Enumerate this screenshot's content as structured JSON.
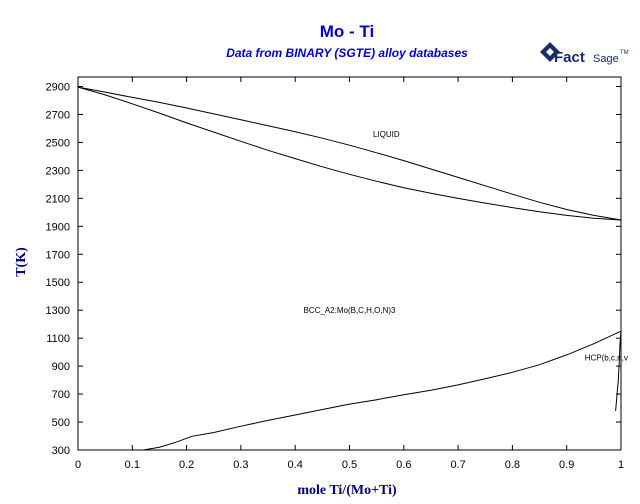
{
  "chart_data": {
    "type": "line",
    "title": "Mo - Ti",
    "subtitle": "Data from BINARY (SGTE) alloy databases",
    "xlabel": "mole Ti/(Mo+Ti)",
    "ylabel": "T(K)",
    "xlim": [
      0,
      1
    ],
    "ylim": [
      300,
      3000
    ],
    "xticks": [
      "0",
      "0.1",
      "0.2",
      "0.3",
      "0.4",
      "0.5",
      "0.6",
      "0.7",
      "0.8",
      "0.9",
      "1"
    ],
    "yticks": [
      "300",
      "500",
      "700",
      "900",
      "1100",
      "1300",
      "1500",
      "1700",
      "1900",
      "2100",
      "2300",
      "2500",
      "2700",
      "2900"
    ],
    "grid": false,
    "logo": {
      "main": "Fact",
      "sage": "Sage",
      "tm": "TM"
    },
    "annotations": [
      {
        "text": "LIQUID",
        "x": 0.58,
        "y": 2540
      },
      {
        "text": "BCC_A2:Mo(B,C,H,O,N)3",
        "x": 0.5,
        "y": 1280
      },
      {
        "text": "HCP(b,c,n,v",
        "x": 0.97,
        "y": 940
      }
    ],
    "series": [
      {
        "x": [
          0,
          0.05,
          0.1,
          0.15,
          0.2,
          0.25,
          0.3,
          0.35,
          0.4,
          0.45,
          0.5,
          0.55,
          0.6,
          0.65,
          0.7,
          0.75,
          0.8,
          0.85,
          0.9,
          0.95,
          1
        ],
        "y": [
          2896,
          2860,
          2822,
          2786,
          2746,
          2704,
          2662,
          2620,
          2576,
          2530,
          2480,
          2426,
          2370,
          2310,
          2250,
          2190,
          2130,
          2072,
          2020,
          1978,
          1945
        ]
      },
      {
        "x": [
          0,
          0.05,
          0.1,
          0.15,
          0.2,
          0.25,
          0.3,
          0.35,
          0.4,
          0.45,
          0.5,
          0.55,
          0.6,
          0.65,
          0.7,
          0.75,
          0.8,
          0.85,
          0.9,
          0.95,
          1
        ],
        "y": [
          2896,
          2840,
          2776,
          2710,
          2640,
          2574,
          2508,
          2444,
          2384,
          2326,
          2272,
          2222,
          2176,
          2136,
          2100,
          2066,
          2034,
          2004,
          1978,
          1958,
          1945
        ]
      },
      {
        "x": [
          0.12,
          0.15,
          0.18,
          0.21,
          0.25,
          0.3,
          0.35,
          0.4,
          0.45,
          0.5,
          0.55,
          0.6,
          0.65,
          0.7,
          0.75,
          0.8,
          0.85,
          0.9,
          0.95,
          1
        ],
        "y": [
          300,
          320,
          355,
          398,
          425,
          470,
          512,
          550,
          590,
          628,
          660,
          695,
          728,
          766,
          810,
          856,
          910,
          980,
          1060,
          1150
        ]
      },
      {
        "x": [
          0.99,
          0.995,
          0.997,
          0.998,
          1
        ],
        "y": [
          580,
          800,
          950,
          1050,
          1150
        ]
      }
    ]
  }
}
